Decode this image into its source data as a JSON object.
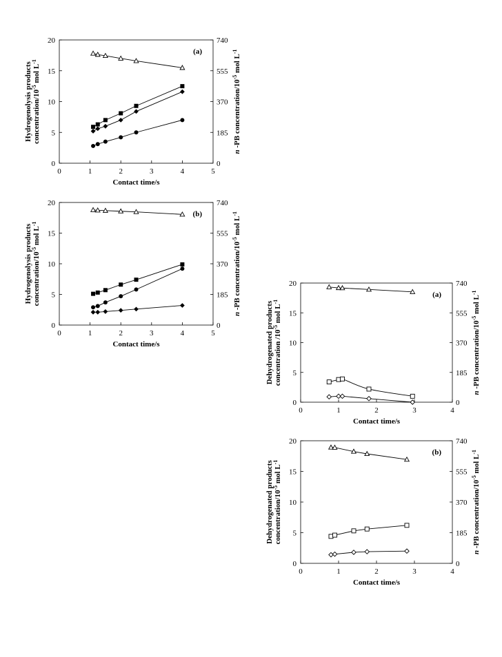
{
  "chart_data": [
    {
      "type": "line",
      "panel_label": "(a)",
      "xlabel": "Contact time/s",
      "ylabel_lines": [
        "Hydrogenolysis products",
        "concentration/10",
        "-5",
        " mol L",
        "-1"
      ],
      "y2label_parts": [
        "n",
        " -PB concentration/10",
        "-5",
        " mol L",
        "-1"
      ],
      "xlim": [
        0,
        5
      ],
      "ylim": [
        0,
        20
      ],
      "y2lim": [
        0,
        740
      ],
      "xticks": [
        "0",
        "1",
        "2",
        "3",
        "4",
        "5"
      ],
      "yticks": [
        "0",
        "5",
        "10",
        "15",
        "20"
      ],
      "y2ticks": [
        "0",
        "185",
        "370",
        "555",
        "740"
      ],
      "grid": false,
      "series": [
        {
          "marker": "open-triangle",
          "axis": "right",
          "x": [
            1.1,
            1.25,
            1.5,
            2.0,
            2.5,
            4.0
          ],
          "y": [
            659,
            652,
            645,
            629,
            614,
            573
          ],
          "curve": "linear"
        },
        {
          "marker": "filled-square",
          "axis": "left",
          "x": [
            1.1,
            1.25,
            1.5,
            2.0,
            2.5,
            4.0
          ],
          "y": [
            5.9,
            6.3,
            7.0,
            8.1,
            9.3,
            12.5
          ],
          "curve": "linear"
        },
        {
          "marker": "filled-diamond",
          "axis": "left",
          "x": [
            1.1,
            1.25,
            1.5,
            2.0,
            2.5,
            4.0
          ],
          "y": [
            5.2,
            5.6,
            6.0,
            7.0,
            8.4,
            11.6
          ],
          "curve": "linear"
        },
        {
          "marker": "filled-circle",
          "axis": "left",
          "x": [
            1.1,
            1.25,
            1.5,
            2.0,
            2.5,
            4.0
          ],
          "y": [
            2.8,
            3.1,
            3.5,
            4.2,
            5.0,
            7.0
          ],
          "curve": "linear"
        }
      ]
    },
    {
      "type": "line",
      "panel_label": "(b)",
      "xlabel": "Contact time/s",
      "ylabel_lines": [
        "Hydrogenolysis products",
        "concentration/10",
        "-5",
        " mol L",
        "-1"
      ],
      "y2label_parts": [
        "n",
        " -PB concentration/10",
        "-5",
        " mol L",
        "-1"
      ],
      "xlim": [
        0,
        5
      ],
      "ylim": [
        0,
        20
      ],
      "y2lim": [
        0,
        740
      ],
      "xticks": [
        "0",
        "1",
        "2",
        "3",
        "4",
        "5"
      ],
      "yticks": [
        "0",
        "5",
        "10",
        "15",
        "20"
      ],
      "y2ticks": [
        "0",
        "185",
        "370",
        "555",
        "740"
      ],
      "grid": false,
      "series": [
        {
          "marker": "open-triangle",
          "axis": "right",
          "x": [
            1.1,
            1.25,
            1.5,
            2.0,
            2.5,
            4.0
          ],
          "y": [
            695,
            693,
            691,
            687,
            683,
            668
          ],
          "curve": "linear"
        },
        {
          "marker": "filled-square",
          "axis": "left",
          "x": [
            1.1,
            1.25,
            1.5,
            2.0,
            2.5,
            4.0
          ],
          "y": [
            5.1,
            5.3,
            5.7,
            6.6,
            7.4,
            9.9
          ],
          "curve": "linear"
        },
        {
          "marker": "filled-circle",
          "axis": "left",
          "x": [
            1.1,
            1.25,
            1.5,
            2.0,
            2.5,
            4.0
          ],
          "y": [
            2.9,
            3.1,
            3.7,
            4.7,
            5.8,
            9.2
          ],
          "curve": "linear"
        },
        {
          "marker": "filled-diamond",
          "axis": "left",
          "x": [
            1.1,
            1.25,
            1.5,
            2.0,
            2.5,
            4.0
          ],
          "y": [
            2.1,
            2.1,
            2.2,
            2.4,
            2.6,
            3.2
          ],
          "curve": "linear"
        }
      ]
    },
    {
      "type": "line",
      "panel_label": "(a)",
      "xlabel": "Contact time/s",
      "ylabel_lines": [
        "Dehydrogenated products",
        "concentration /10",
        "-5",
        " mol L",
        "-1"
      ],
      "y2label_parts": [
        "n",
        " -PB concentration/10",
        "-5",
        " mol L",
        "-1"
      ],
      "xlim": [
        0,
        4
      ],
      "ylim": [
        0,
        20
      ],
      "y2lim": [
        0,
        740
      ],
      "xticks": [
        "0",
        "1",
        "2",
        "3",
        "4"
      ],
      "yticks": [
        "0",
        "5",
        "10",
        "15",
        "20"
      ],
      "y2ticks": [
        "0",
        "185",
        "370",
        "555",
        "740"
      ],
      "grid": false,
      "series": [
        {
          "marker": "open-triangle",
          "axis": "right",
          "x": [
            0.75,
            1.0,
            1.1,
            1.8,
            2.95
          ],
          "y": [
            715,
            710,
            709,
            700,
            685
          ],
          "curve": "linear"
        },
        {
          "marker": "open-square",
          "axis": "left",
          "x": [
            0.75,
            1.0,
            1.1,
            1.8,
            2.95
          ],
          "y": [
            3.4,
            3.8,
            3.9,
            2.2,
            1.0
          ],
          "curve": "smooth"
        },
        {
          "marker": "open-diamond",
          "axis": "left",
          "x": [
            0.75,
            1.0,
            1.1,
            1.8,
            2.95
          ],
          "y": [
            0.9,
            1.0,
            1.0,
            0.6,
            0.0
          ],
          "curve": "smooth"
        }
      ]
    },
    {
      "type": "line",
      "panel_label": "(b)",
      "xlabel": "Contact time/s",
      "ylabel_lines": [
        "Dehydrogenated products",
        "concentration/10",
        "-5",
        " mol L",
        "-1"
      ],
      "y2label_parts": [
        "n",
        " -PB concentration/10",
        "-5",
        " mol L",
        "-1"
      ],
      "xlim": [
        0,
        4
      ],
      "ylim": [
        0,
        20
      ],
      "y2lim": [
        0,
        740
      ],
      "xticks": [
        "0",
        "1",
        "2",
        "3",
        "4"
      ],
      "yticks": [
        "0",
        "5",
        "10",
        "15",
        "20"
      ],
      "y2ticks": [
        "0",
        "185",
        "370",
        "555",
        "740"
      ],
      "grid": false,
      "series": [
        {
          "marker": "open-triangle",
          "axis": "right",
          "x": [
            0.8,
            0.9,
            1.4,
            1.75,
            2.8
          ],
          "y": [
            700,
            699,
            675,
            661,
            627
          ],
          "curve": "linear"
        },
        {
          "marker": "open-square",
          "axis": "left",
          "x": [
            0.8,
            0.9,
            1.4,
            1.75,
            2.8
          ],
          "y": [
            4.4,
            4.6,
            5.3,
            5.6,
            6.2
          ],
          "curve": "linear"
        },
        {
          "marker": "open-diamond",
          "axis": "left",
          "x": [
            0.8,
            0.9,
            1.4,
            1.75,
            2.8
          ],
          "y": [
            1.4,
            1.5,
            1.8,
            1.9,
            2.0
          ],
          "curve": "linear"
        }
      ]
    }
  ]
}
